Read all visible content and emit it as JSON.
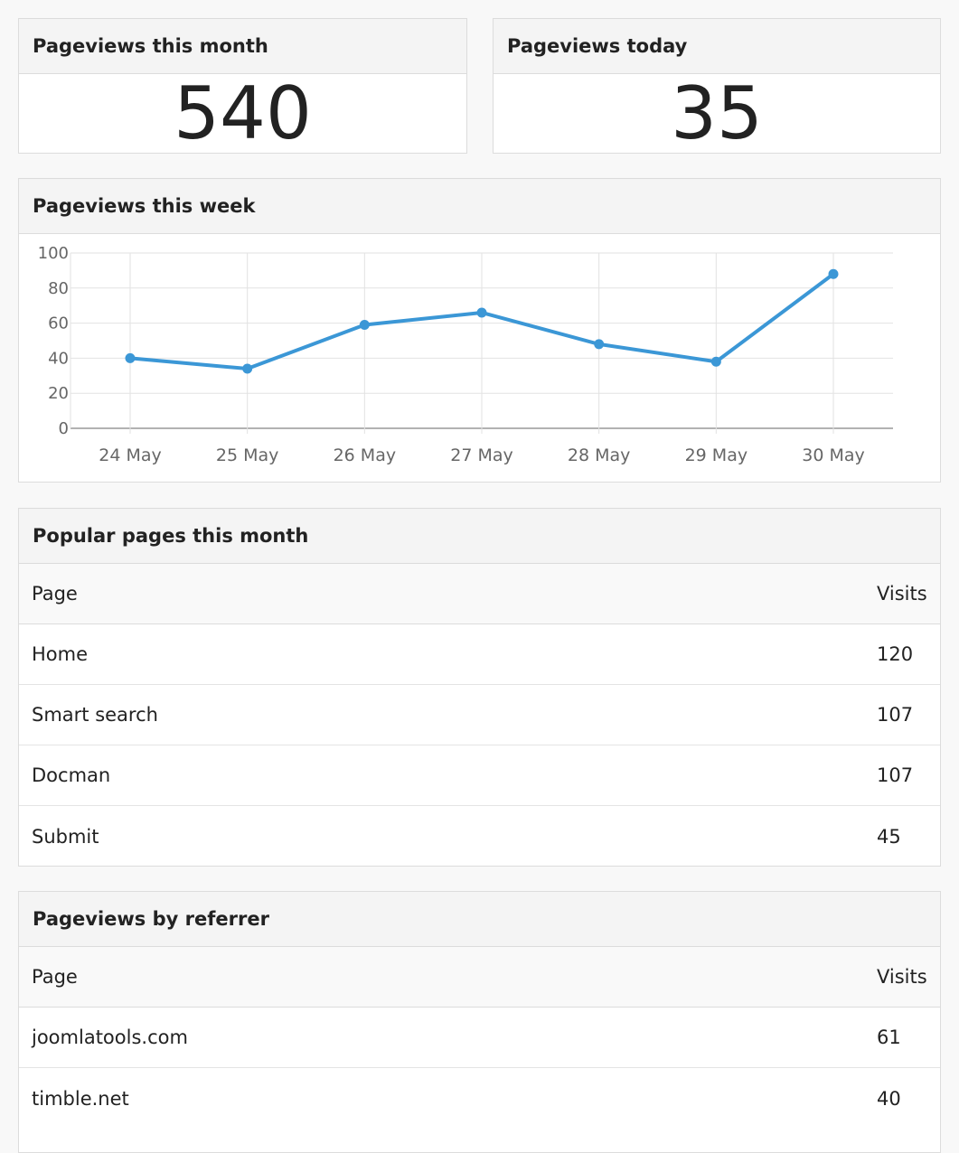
{
  "stats": {
    "month": {
      "title": "Pageviews this month",
      "value": "540"
    },
    "today": {
      "title": "Pageviews today",
      "value": "35"
    }
  },
  "week": {
    "title": "Pageviews this week"
  },
  "chart_data": {
    "type": "line",
    "title": "",
    "xlabel": "",
    "ylabel": "",
    "categories": [
      "24 May",
      "25 May",
      "26 May",
      "27 May",
      "28 May",
      "29 May",
      "30 May"
    ],
    "values": [
      40,
      34,
      59,
      66,
      48,
      38,
      88
    ],
    "ylim": [
      0,
      100
    ],
    "yticks": [
      0,
      20,
      40,
      60,
      80,
      100
    ],
    "grid": true,
    "legend": "none",
    "line_color": "#3b97d6"
  },
  "popular": {
    "title": "Popular pages this month",
    "columns": {
      "page": "Page",
      "visits": "Visits"
    },
    "rows": [
      {
        "page": "Home",
        "visits": "120"
      },
      {
        "page": "Smart search",
        "visits": "107"
      },
      {
        "page": "Docman",
        "visits": "107"
      },
      {
        "page": "Submit",
        "visits": "45"
      }
    ]
  },
  "referrer": {
    "title": "Pageviews by referrer",
    "columns": {
      "page": "Page",
      "visits": "Visits"
    },
    "rows": [
      {
        "page": "joomlatools.com",
        "visits": "61"
      },
      {
        "page": "timble.net",
        "visits": "40"
      }
    ]
  }
}
